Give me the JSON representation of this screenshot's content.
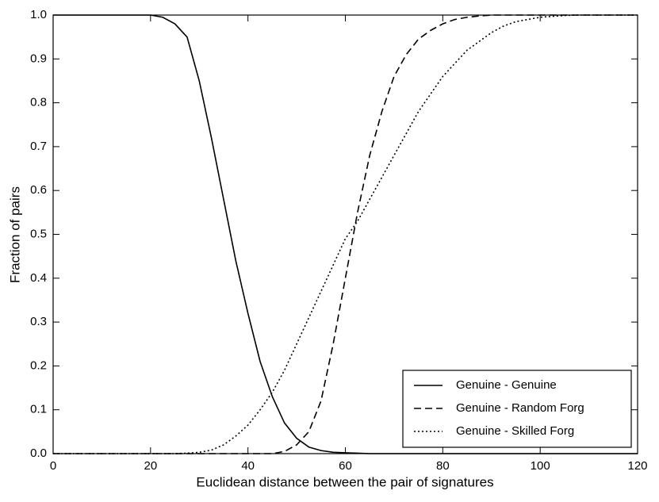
{
  "chart_data": {
    "type": "line",
    "xlabel": "Euclidean distance between the pair of signatures",
    "ylabel": "Fraction of pairs",
    "x": [
      0,
      2.5,
      5,
      7.5,
      10,
      12.5,
      15,
      17.5,
      20,
      22.5,
      25,
      27.5,
      30,
      32.5,
      35,
      37.5,
      40,
      42.5,
      45,
      47.5,
      50,
      52.5,
      55,
      57.5,
      60,
      62.5,
      65,
      67.5,
      70,
      72.5,
      75,
      77.5,
      80,
      82.5,
      85,
      87.5,
      90,
      92.5,
      95,
      97.5,
      100,
      102.5,
      105,
      107.5,
      110,
      112.5,
      115,
      117.5,
      120
    ],
    "series": [
      {
        "name": "Genuine - Genuine",
        "color": "#000000",
        "dash": "solid",
        "values": [
          1,
          1,
          1,
          1,
          1,
          1,
          1,
          1,
          1,
          0.995,
          0.98,
          0.95,
          0.85,
          0.72,
          0.58,
          0.44,
          0.32,
          0.21,
          0.13,
          0.07,
          0.035,
          0.015,
          0.007,
          0.003,
          0.002,
          0.001,
          0,
          0,
          0,
          0,
          0,
          0,
          0,
          0,
          0,
          0,
          0,
          0,
          0,
          0,
          0,
          0,
          0,
          0,
          0,
          0,
          0,
          0,
          0
        ]
      },
      {
        "name": "Genuine - Random Forg",
        "color": "#000000",
        "dash": "dashed",
        "values": [
          0,
          0,
          0,
          0,
          0,
          0,
          0,
          0,
          0,
          0,
          0,
          0,
          0,
          0,
          0,
          0,
          0,
          0,
          0,
          0.005,
          0.02,
          0.05,
          0.12,
          0.25,
          0.4,
          0.55,
          0.68,
          0.78,
          0.86,
          0.91,
          0.945,
          0.965,
          0.98,
          0.99,
          0.995,
          0.998,
          1,
          1,
          1,
          1,
          1,
          1,
          1,
          1,
          1,
          1,
          1,
          1,
          1
        ]
      },
      {
        "name": "Genuine - Skilled Forg",
        "color": "#000000",
        "dash": "dotted",
        "values": [
          0,
          0,
          0,
          0,
          0,
          0,
          0,
          0,
          0,
          0,
          0,
          0.001,
          0.003,
          0.008,
          0.02,
          0.04,
          0.065,
          0.1,
          0.14,
          0.19,
          0.25,
          0.31,
          0.37,
          0.43,
          0.49,
          0.53,
          0.58,
          0.63,
          0.68,
          0.73,
          0.78,
          0.82,
          0.86,
          0.89,
          0.92,
          0.94,
          0.96,
          0.975,
          0.985,
          0.99,
          0.995,
          0.997,
          0.999,
          1,
          1,
          1,
          1,
          1,
          1
        ]
      }
    ],
    "xlim": [
      0,
      120
    ],
    "xticks": [
      0,
      20,
      40,
      60,
      80,
      100,
      120
    ],
    "ylim": [
      0,
      1
    ],
    "yticks": [
      {
        "value": 0,
        "label": "0.0"
      },
      0.1,
      0.2,
      0.3,
      0.4,
      0.5,
      0.6,
      0.7,
      0.8,
      0.9,
      {
        "value": 1,
        "label": "1.0"
      }
    ],
    "legend": "lower right",
    "grid": false
  }
}
